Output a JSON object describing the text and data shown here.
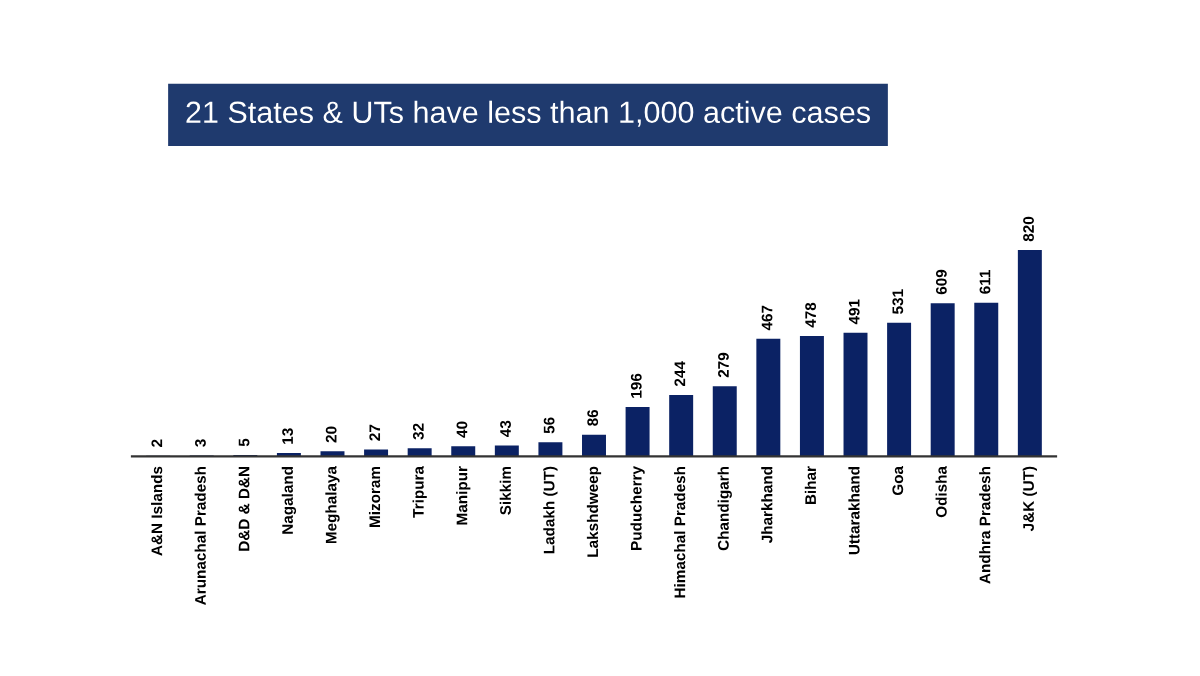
{
  "chart_data": {
    "type": "bar",
    "title": "21 States & UTs have less than 1,000 active cases",
    "categories": [
      "A&N Islands",
      "Arunachal Pradesh",
      "D&D & D&N",
      "Nagaland",
      "Meghalaya",
      "Mizoram",
      "Tripura",
      "Manipur",
      "Sikkim",
      "Ladakh (UT)",
      "Lakshdweep",
      "Puducherry",
      "Himachal Pradesh",
      "Chandigarh",
      "Jharkhand",
      "Bihar",
      "Uttarakhand",
      "Goa",
      "Odisha",
      "Andhra Pradesh",
      "J&K (UT)"
    ],
    "values": [
      2,
      3,
      5,
      13,
      20,
      27,
      32,
      40,
      43,
      56,
      86,
      196,
      244,
      279,
      467,
      478,
      491,
      531,
      609,
      611,
      820
    ],
    "color": "#0b2264",
    "data_labels": true,
    "tick_labels": "x",
    "grid": false,
    "legend": false
  }
}
